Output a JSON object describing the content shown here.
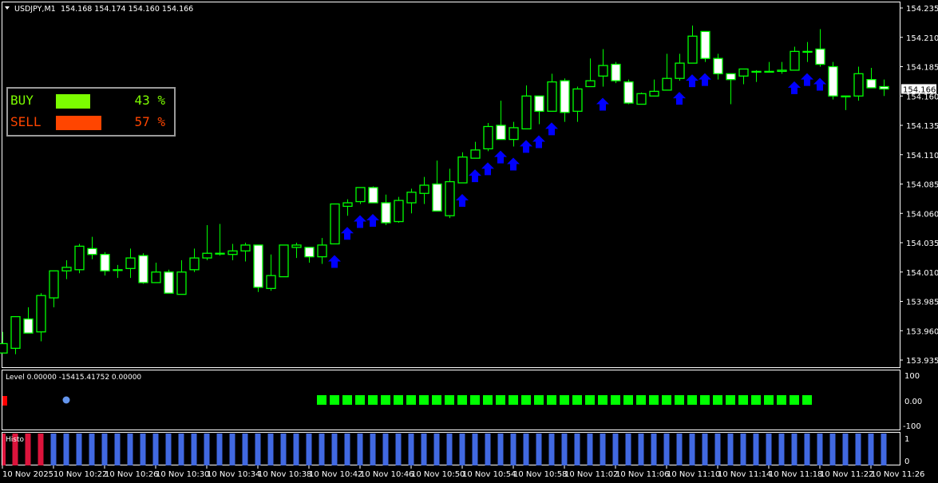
{
  "header": {
    "symbol": "USDJPY,M1",
    "ohlc": "154.168 154.174 154.160 154.166"
  },
  "colors": {
    "bull_border": "#00ff00",
    "bear_body": "#ffffff",
    "arrow": "#0000ff",
    "buy": "#7cfc00",
    "sell": "#ff4500",
    "histo_red": "#dc143c",
    "histo_blue": "#4169e1",
    "square_green": "#00ff00",
    "square_red": "#ff0000",
    "dot_blue": "#6495ed"
  },
  "strength_panel": {
    "buy": {
      "label": "BUY",
      "percent": 43,
      "percent_text": "43 %"
    },
    "sell": {
      "label": "SELL",
      "percent": 57,
      "percent_text": "57 %"
    }
  },
  "price_axis": {
    "ticks": [
      "154.235",
      "154.210",
      "154.185",
      "154.160",
      "154.135",
      "154.110",
      "154.085",
      "154.060",
      "154.035",
      "154.010",
      "153.985",
      "153.960",
      "153.935"
    ],
    "current_price": "154.166",
    "range": [
      153.935,
      154.235
    ]
  },
  "level_panel": {
    "title": "Level 0.00000 -15415.41752 0.00000",
    "ticks": [
      "100",
      "0.00",
      "-100"
    ],
    "red_squares": [
      0
    ],
    "blue_dots": [
      5
    ],
    "green_squares_from": 25,
    "green_squares_to": 63
  },
  "histo_panel": {
    "title": "Histo",
    "ticks": [
      "1",
      "0"
    ],
    "red_bars": [
      0,
      1,
      2,
      3
    ],
    "value": 1
  },
  "time_axis": {
    "labels": [
      "10 Nov 2025",
      "10 Nov 10:22",
      "10 Nov 10:26",
      "10 Nov 10:30",
      "10 Nov 10:34",
      "10 Nov 10:38",
      "10 Nov 10:42",
      "10 Nov 10:46",
      "10 Nov 10:50",
      "10 Nov 10:54",
      "10 Nov 10:58",
      "10 Nov 11:02",
      "10 Nov 11:06",
      "10 Nov 11:10",
      "10 Nov 11:14",
      "10 Nov 11:18",
      "10 Nov 11:22",
      "10 Nov 11:26"
    ]
  },
  "arrows_at": [
    26,
    27,
    28,
    29,
    36,
    37,
    38,
    39,
    40,
    41,
    42,
    43,
    47,
    53,
    54,
    55,
    62,
    63,
    64
  ],
  "candles": [
    [
      153.941,
      153.949,
      153.959,
      153.941
    ],
    [
      153.945,
      153.972,
      153.972,
      153.94
    ],
    [
      153.97,
      153.958,
      153.98,
      153.958
    ],
    [
      153.959,
      153.99,
      153.992,
      153.951
    ],
    [
      153.988,
      154.011,
      154.011,
      153.98
    ],
    [
      154.011,
      154.014,
      154.02,
      154.004
    ],
    [
      154.012,
      154.032,
      154.034,
      154.009
    ],
    [
      154.03,
      154.025,
      154.04,
      154.021
    ],
    [
      154.025,
      154.011,
      154.027,
      154.007
    ],
    [
      154.012,
      154.012,
      154.016,
      154.005
    ],
    [
      154.013,
      154.022,
      154.03,
      154.005
    ],
    [
      154.024,
      154.001,
      154.026,
      154.0
    ],
    [
      154.001,
      154.01,
      154.018,
      154.001
    ],
    [
      154.01,
      153.992,
      154.012,
      153.992
    ],
    [
      153.991,
      154.01,
      154.02,
      153.991
    ],
    [
      154.012,
      154.022,
      154.03,
      154.01
    ],
    [
      154.022,
      154.026,
      154.05,
      154.02
    ],
    [
      154.026,
      154.026,
      154.051,
      154.024
    ],
    [
      154.025,
      154.028,
      154.034,
      154.02
    ],
    [
      154.028,
      154.033,
      154.035,
      154.019
    ],
    [
      154.033,
      153.997,
      154.033,
      153.993
    ],
    [
      153.996,
      154.007,
      154.025,
      153.994
    ],
    [
      154.006,
      154.033,
      154.033,
      154.006
    ],
    [
      154.031,
      154.033,
      154.035,
      154.022
    ],
    [
      154.031,
      154.023,
      154.031,
      154.018
    ],
    [
      154.023,
      154.033,
      154.039,
      154.017
    ],
    [
      154.034,
      154.068,
      154.068,
      154.034
    ],
    [
      154.066,
      154.069,
      154.072,
      154.058
    ],
    [
      154.07,
      154.082,
      154.082,
      154.068
    ],
    [
      154.082,
      154.069,
      154.083,
      154.069
    ],
    [
      154.069,
      154.052,
      154.076,
      154.05
    ],
    [
      154.053,
      154.071,
      154.074,
      154.052
    ],
    [
      154.069,
      154.078,
      154.081,
      154.06
    ],
    [
      154.077,
      154.084,
      154.091,
      154.068
    ],
    [
      154.085,
      154.062,
      154.105,
      154.062
    ],
    [
      154.058,
      154.087,
      154.098,
      154.056
    ],
    [
      154.086,
      154.108,
      154.112,
      154.086
    ],
    [
      154.107,
      154.114,
      154.121,
      154.107
    ],
    [
      154.115,
      154.134,
      154.137,
      154.113
    ],
    [
      154.135,
      154.123,
      154.156,
      154.123
    ],
    [
      154.123,
      154.133,
      154.138,
      154.117
    ],
    [
      154.132,
      154.16,
      154.169,
      154.132
    ],
    [
      154.16,
      154.147,
      154.16,
      154.136
    ],
    [
      154.147,
      154.172,
      154.179,
      154.147
    ],
    [
      154.173,
      154.146,
      154.175,
      154.138
    ],
    [
      154.147,
      154.166,
      154.168,
      154.138
    ],
    [
      154.168,
      154.173,
      154.192,
      154.168
    ],
    [
      154.177,
      154.186,
      154.2,
      154.168
    ],
    [
      154.187,
      154.173,
      154.189,
      154.171
    ],
    [
      154.172,
      154.154,
      154.174,
      154.153
    ],
    [
      154.153,
      154.162,
      154.163,
      154.153
    ],
    [
      154.16,
      154.164,
      154.174,
      154.16
    ],
    [
      154.165,
      154.175,
      154.196,
      154.165
    ],
    [
      154.175,
      154.188,
      154.196,
      154.173
    ],
    [
      154.188,
      154.211,
      154.22,
      154.188
    ],
    [
      154.215,
      154.192,
      154.215,
      154.189
    ],
    [
      154.192,
      154.179,
      154.196,
      154.174
    ],
    [
      154.179,
      154.174,
      154.179,
      154.153
    ],
    [
      154.177,
      154.183,
      154.183,
      154.17
    ],
    [
      154.181,
      154.181,
      154.182,
      154.172
    ],
    [
      154.181,
      154.181,
      154.189,
      154.181
    ],
    [
      154.181,
      154.182,
      154.189,
      154.179
    ],
    [
      154.182,
      154.198,
      154.202,
      154.182
    ],
    [
      154.198,
      154.198,
      154.206,
      154.189
    ],
    [
      154.2,
      154.187,
      154.217,
      154.185
    ],
    [
      154.185,
      154.16,
      154.189,
      154.157
    ],
    [
      154.16,
      154.16,
      154.16,
      154.148
    ],
    [
      154.16,
      154.179,
      154.185,
      154.156
    ],
    [
      154.174,
      154.167,
      154.184,
      154.167
    ],
    [
      154.168,
      154.166,
      154.174,
      154.16
    ]
  ]
}
